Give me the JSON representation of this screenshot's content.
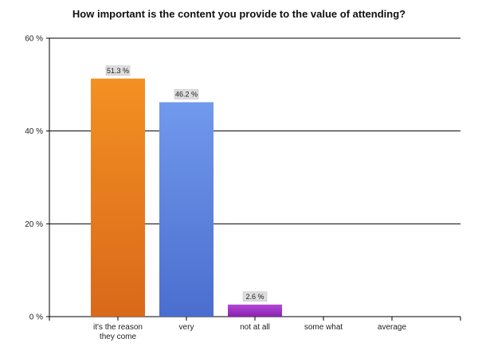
{
  "chart_data": {
    "type": "bar",
    "title": "How important is the content you provide to the value of attending?",
    "categories": [
      [
        "it's the reason",
        "they come"
      ],
      [
        "very"
      ],
      [
        "not at all"
      ],
      [
        "some what"
      ],
      [
        "average"
      ]
    ],
    "values": [
      51.3,
      46.2,
      2.6,
      0,
      0
    ],
    "value_labels": [
      "51.3 %",
      "46.2 %",
      "2.6 %",
      "",
      ""
    ],
    "ylim": [
      0,
      60
    ],
    "y_ticks": [
      0,
      20,
      40,
      60
    ],
    "y_tick_labels": [
      "0 %",
      "20 %",
      "40 %",
      "60 %"
    ],
    "grid": true,
    "bar_colors": [
      [
        "#f39022",
        "#d9691a"
      ],
      [
        "#7199ec",
        "#4a6ecf"
      ],
      [
        "#b347d6",
        "#8a22b0"
      ],
      [
        "#cccccc",
        "#aaaaaa"
      ],
      [
        "#cccccc",
        "#aaaaaa"
      ]
    ]
  }
}
